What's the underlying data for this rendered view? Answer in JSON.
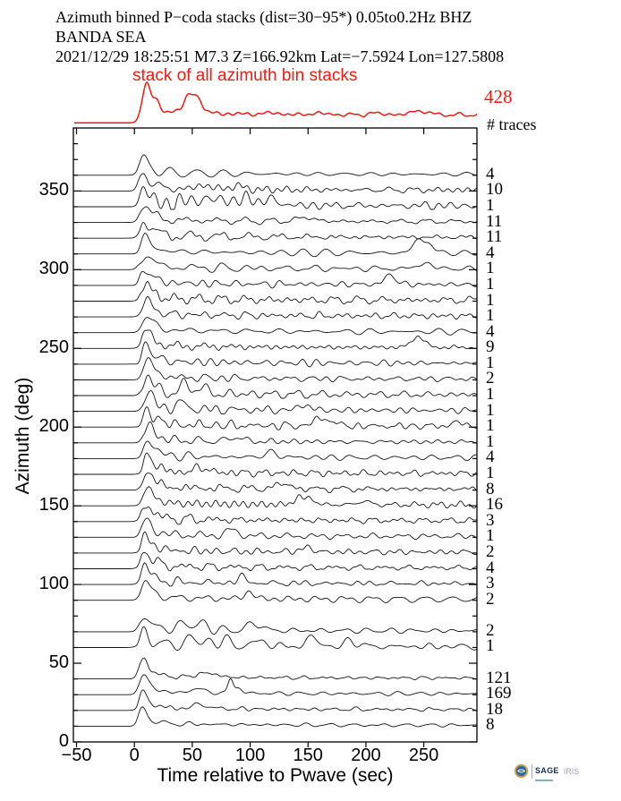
{
  "header": {
    "title_line1": "Azimuth binned P−coda stacks (dist=30−95*)  0.05to0.2Hz  BHZ",
    "title_line2": "BANDA SEA",
    "title_line3": "2021/12/29  18:25:51  M7.3  Z=166.92km Lat=−7.5924 Lon=127.5808"
  },
  "stack_panel": {
    "label": "stack of all azimuth bin stacks",
    "total_traces": "428",
    "traces_heading": "# traces"
  },
  "chart_data": {
    "type": "line",
    "title": "Azimuth binned P-coda stacks (dist=30-95*) 0.05to0.2Hz BHZ, BANDA SEA, 2021/12/29 18:25:51 M7.3 Z=166.92km Lat=-7.5924 Lon=127.5808",
    "xlabel": "Time relative to Pwave (sec)",
    "ylabel": "Azimuth (deg)",
    "xlim": [
      -52,
      296
    ],
    "ylim": [
      0,
      390
    ],
    "xticks": [
      -50,
      0,
      50,
      100,
      150,
      200,
      250
    ],
    "yticks": [
      0,
      50,
      100,
      150,
      200,
      250,
      300,
      350
    ],
    "grid": false,
    "accent_color": "#ee1b11",
    "trace_color": "#141414",
    "stack": {
      "label": "stack of all azimuth bin stacks",
      "total": 428,
      "p_time": 10.2,
      "p_amp": 32,
      "coda": 0.8,
      "sustain": [
        4.5,
        8.8
      ],
      "bumps": [
        [
          44,
          8,
          3
        ],
        [
          51,
          19,
          5.5
        ],
        [
          57.5,
          5,
          2.2
        ],
        [
          118,
          2,
          4.5
        ],
        [
          160,
          1.8,
          5
        ],
        [
          210,
          2,
          5.5
        ],
        [
          243,
          4.5,
          5
        ],
        [
          255,
          2.5,
          4
        ]
      ]
    },
    "traces": [
      {
        "az": 360,
        "n": 4,
        "tp": 7.5,
        "amp": 15,
        "coda": 0.85,
        "bumps": []
      },
      {
        "az": 350,
        "n": 10,
        "tp": 8,
        "amp": 16,
        "coda": 0.95,
        "bumps": [
          [
            60,
            5,
            5
          ],
          [
            88,
            4,
            6
          ]
        ]
      },
      {
        "az": 340,
        "n": 1,
        "tp": 8.5,
        "amp": 16,
        "coda": 1.5,
        "bumps": [
          [
            50,
            7,
            6
          ],
          [
            72,
            8,
            7
          ],
          [
            98,
            8,
            8
          ],
          [
            120,
            6,
            6
          ]
        ]
      },
      {
        "az": 330,
        "n": 11,
        "tp": 8.5,
        "amp": 17,
        "coda": 0.85,
        "bumps": [
          [
            148,
            4,
            8
          ]
        ]
      },
      {
        "az": 320,
        "n": 11,
        "tp": 9,
        "amp": 16,
        "coda": 0.8,
        "bumps": []
      },
      {
        "az": 310,
        "n": 4,
        "tp": 9,
        "amp": 15,
        "coda": 0.9,
        "bumps": [
          [
            245,
            15,
            4.5
          ],
          [
            255,
            11,
            3.5
          ]
        ]
      },
      {
        "az": 300,
        "n": 1,
        "tp": 9,
        "amp": 15,
        "coda": 0.9,
        "bumps": [
          [
            251,
            6,
            6
          ]
        ]
      },
      {
        "az": 290,
        "n": 1,
        "tp": 9.5,
        "amp": 15,
        "coda": 1.0,
        "bumps": [
          [
            221,
            11,
            4.5
          ]
        ]
      },
      {
        "az": 280,
        "n": 1,
        "tp": 9.5,
        "amp": 16,
        "coda": 0.95,
        "bumps": []
      },
      {
        "az": 270,
        "n": 1,
        "tp": 10,
        "amp": 15,
        "coda": 0.95,
        "bumps": []
      },
      {
        "az": 260,
        "n": 4,
        "tp": 10,
        "amp": 15,
        "coda": 0.9,
        "bumps": []
      },
      {
        "az": 250,
        "n": 9,
        "tp": 10,
        "amp": 16,
        "coda": 0.9,
        "bumps": [
          [
            245,
            12,
            5.5
          ]
        ]
      },
      {
        "az": 240,
        "n": 1,
        "tp": 10.5,
        "amp": 17,
        "coda": 0.95,
        "bumps": []
      },
      {
        "az": 230,
        "n": 2,
        "tp": 11,
        "amp": 19,
        "coda": 1.0,
        "bumps": []
      },
      {
        "az": 220,
        "n": 1,
        "tp": 11,
        "amp": 17,
        "coda": 1.25,
        "bumps": [
          [
            44,
            9,
            4.5
          ],
          [
            57,
            7,
            4.5
          ]
        ]
      },
      {
        "az": 210,
        "n": 1,
        "tp": 11.5,
        "amp": 16,
        "coda": 1.25,
        "bumps": [
          [
            41,
            7,
            4.5
          ],
          [
            147,
            6,
            5
          ]
        ]
      },
      {
        "az": 200,
        "n": 1,
        "tp": 12,
        "amp": 16,
        "coda": 1.15,
        "bumps": [
          [
            159,
            9,
            4.5
          ],
          [
            171,
            7,
            3.5
          ],
          [
            279,
            5,
            4
          ]
        ]
      },
      {
        "az": 190,
        "n": 1,
        "tp": 12,
        "amp": 16,
        "coda": 1.0,
        "bumps": [
          [
            88,
            5,
            5
          ]
        ]
      },
      {
        "az": 180,
        "n": 4,
        "tp": 12,
        "amp": 17,
        "coda": 1.0,
        "bumps": [
          [
            118,
            5,
            6
          ]
        ]
      },
      {
        "az": 170,
        "n": 1,
        "tp": 12,
        "amp": 18,
        "coda": 1.05,
        "bumps": [
          [
            58,
            6,
            5
          ]
        ]
      },
      {
        "az": 160,
        "n": 8,
        "tp": 11.5,
        "amp": 17,
        "coda": 1.0,
        "bumps": [
          [
            128,
            6,
            6
          ]
        ]
      },
      {
        "az": 150,
        "n": 16,
        "tp": 11,
        "amp": 16,
        "coda": 1.0,
        "bumps": [
          [
            142,
            9,
            3.5
          ],
          [
            152,
            8,
            3.5
          ],
          [
            198,
            4,
            5
          ]
        ]
      },
      {
        "az": 140,
        "n": 3,
        "tp": 10.5,
        "amp": 16,
        "coda": 0.9,
        "bumps": []
      },
      {
        "az": 130,
        "n": 1,
        "tp": 10,
        "amp": 15,
        "coda": 1.0,
        "bumps": [
          [
            84,
            7,
            4.5
          ]
        ]
      },
      {
        "az": 120,
        "n": 2,
        "tp": 10,
        "amp": 15,
        "coda": 1.0,
        "bumps": [
          [
            148,
            5,
            5
          ]
        ]
      },
      {
        "az": 110,
        "n": 4,
        "tp": 9.5,
        "amp": 16,
        "coda": 0.9,
        "bumps": []
      },
      {
        "az": 100,
        "n": 3,
        "tp": 9,
        "amp": 17,
        "coda": 0.9,
        "bumps": [
          [
            93,
            7,
            4
          ]
        ]
      },
      {
        "az": 90,
        "n": 2,
        "tp": 9,
        "amp": 17,
        "coda": 0.9,
        "bumps": [
          [
            99,
            8,
            4
          ]
        ]
      },
      {
        "az": 70,
        "n": 2,
        "tp": 8.5,
        "amp": 13,
        "coda": 1.45,
        "bumps": [
          [
            44,
            8,
            4.5
          ],
          [
            59,
            7,
            4.5
          ],
          [
            104,
            8,
            5.5
          ]
        ]
      },
      {
        "az": 60,
        "n": 1,
        "tp": 8,
        "amp": 13,
        "coda": 1.7,
        "bumps": [
          [
            47,
            9,
            3.5
          ],
          [
            61,
            8,
            3.5
          ],
          [
            79,
            7,
            4.5
          ],
          [
            109,
            7,
            4.5
          ],
          [
            154,
            11,
            4.5
          ],
          [
            188,
            7,
            4.5
          ]
        ]
      },
      {
        "az": 40,
        "n": 121,
        "tp": 7.5,
        "amp": 18,
        "coda": 0.65,
        "bumps": [
          [
            58,
            5,
            4
          ],
          [
            70,
            4,
            4
          ]
        ]
      },
      {
        "az": 30,
        "n": 169,
        "tp": 7.5,
        "amp": 18,
        "coda": 0.55,
        "bumps": [
          [
            55,
            5,
            5
          ],
          [
            83,
            16,
            2.2
          ],
          [
            90,
            6,
            3
          ]
        ]
      },
      {
        "az": 20,
        "n": 18,
        "tp": 7.5,
        "amp": 15,
        "coda": 0.65,
        "bumps": [
          [
            53,
            6,
            2.5
          ],
          [
            63,
            5,
            2.5
          ]
        ]
      },
      {
        "az": 10,
        "n": 8,
        "tp": 7,
        "amp": 14,
        "coda": 0.65,
        "bumps": []
      }
    ]
  },
  "logo": {
    "sage": "SAGE",
    "iris": "IRIS"
  }
}
